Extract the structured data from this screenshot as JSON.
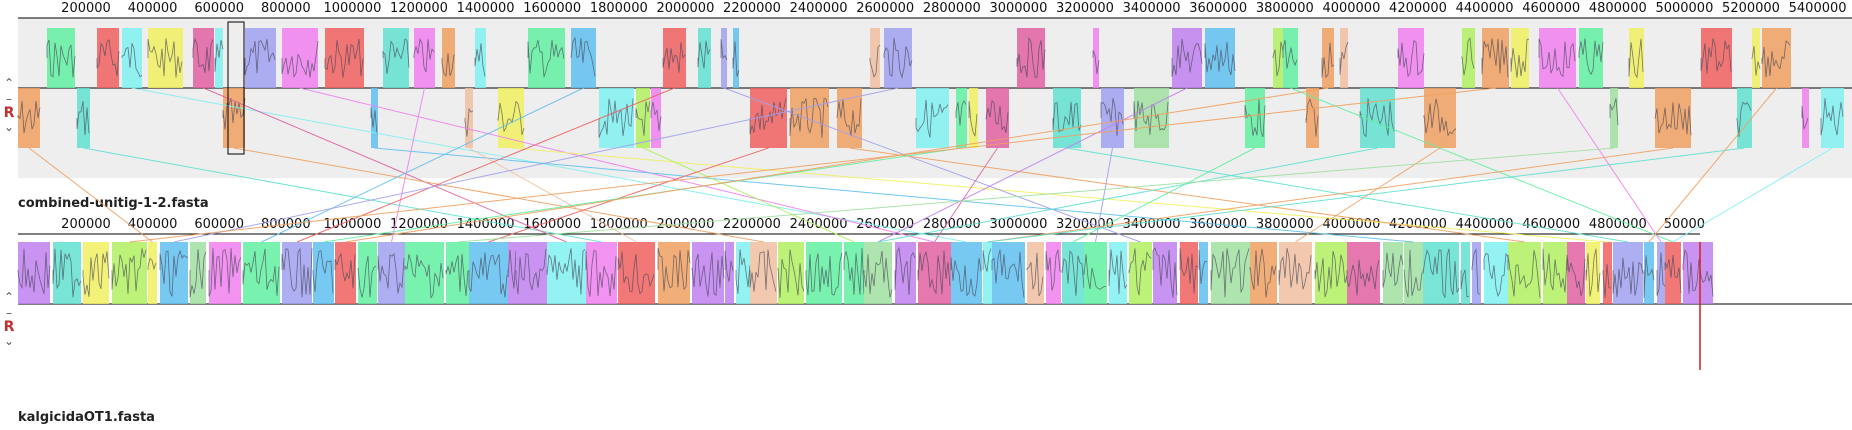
{
  "genomes": [
    {
      "name": "combined-unitig-1-2.fasta",
      "ticks": [
        "200000",
        "400000",
        "600000",
        "800000",
        "1000000",
        "1200000",
        "1400000",
        "1600000",
        "1800000",
        "2000000",
        "2200000",
        "2400000",
        "2600000",
        "2800000",
        "3000000",
        "3200000",
        "3400000",
        "3600000",
        "3800000",
        "4000000",
        "4200000",
        "4400000",
        "4600000",
        "4800000",
        "5000000",
        "5200000",
        "5400000"
      ],
      "controls": {
        "up": "⌃",
        "minus": "–",
        "r": "R",
        "down": "⌄"
      }
    },
    {
      "name": "kalgicidaOT1.fasta",
      "ticks": [
        "200000",
        "400000",
        "600000",
        "800000",
        "1000000",
        "1200000",
        "1400000",
        "1600000",
        "1800000",
        "2000000",
        "2200000",
        "2400000",
        "2600000",
        "2800000",
        "3000000",
        "3200000",
        "3400000",
        "3600000",
        "3800000",
        "4000000",
        "4200000",
        "4400000",
        "4600000",
        "4800000",
        "50000"
      ],
      "controls": {
        "up": "⌃",
        "minus": "–",
        "r": "R",
        "down": "⌄"
      }
    }
  ],
  "palette": [
    "#b0f060",
    "#f080f0",
    "#60e0d0",
    "#f0a060",
    "#a0a0f0",
    "#f06060",
    "#60f0a0",
    "#f0f060",
    "#c080f0",
    "#60c0f0",
    "#f0c0a0",
    "#80f0f0",
    "#e060a0",
    "#a0e0a0"
  ]
}
